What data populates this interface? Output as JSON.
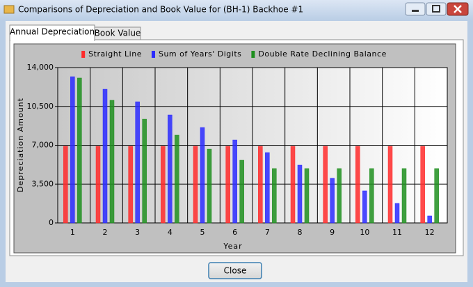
{
  "window": {
    "title": "Comparisons of Depreciation and Book Value for (BH-1) Backhoe #1",
    "tabs": [
      "Annual Depreciation",
      "Book Value"
    ],
    "button": "Close"
  },
  "chart_data": {
    "type": "bar",
    "xlabel": "Year",
    "ylabel": "Depreciation Amount",
    "categories": [
      "1",
      "2",
      "3",
      "4",
      "5",
      "6",
      "7",
      "8",
      "9",
      "10",
      "11",
      "12"
    ],
    "series": [
      {
        "name": "Straight Line",
        "color": "#ff2a2a",
        "values": [
          6900,
          6900,
          6900,
          6900,
          6900,
          6900,
          6900,
          6900,
          6900,
          6900,
          6900,
          6900
        ]
      },
      {
        "name": "Sum of Years' Digits",
        "color": "#2a2aff",
        "values": [
          13180,
          12050,
          10920,
          9730,
          8600,
          7470,
          6340,
          5210,
          4020,
          2890,
          1760,
          630
        ]
      },
      {
        "name": "Double Rate Declining Balance",
        "color": "#1f8f1f",
        "values": [
          13060,
          11050,
          9350,
          7910,
          6650,
          5650,
          4900,
          4900,
          4900,
          4900,
          4900,
          4900
        ]
      }
    ],
    "ylim": [
      0,
      14000
    ],
    "yticks": [
      0,
      {
        "value": 3500,
        "label": "3,500"
      },
      {
        "value": 7000,
        "label": "7,000"
      },
      {
        "value": 10500,
        "label": "10,500"
      },
      {
        "value": 14000,
        "label": "14,000"
      }
    ],
    "grid": true,
    "legend": "top"
  }
}
